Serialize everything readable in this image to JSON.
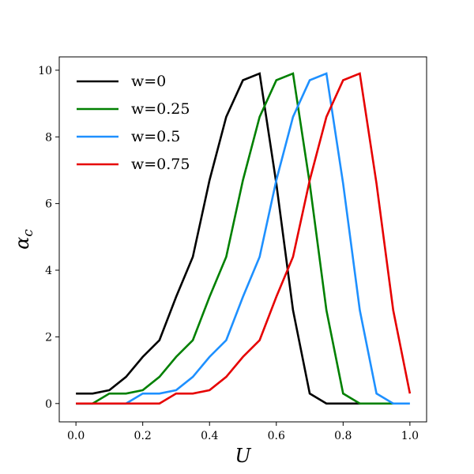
{
  "chart_data": {
    "type": "line",
    "xlabel": "U",
    "ylabel_main": "α",
    "ylabel_sub": "c",
    "xlim": [
      -0.05,
      1.05
    ],
    "ylim": [
      -0.55,
      10.4
    ],
    "xticks": [
      0.0,
      0.2,
      0.4,
      0.6,
      0.8,
      1.0
    ],
    "xtick_labels": [
      "0.0",
      "0.2",
      "0.4",
      "0.6",
      "0.8",
      "1.0"
    ],
    "yticks": [
      0,
      2,
      4,
      6,
      8,
      10
    ],
    "ytick_labels": [
      "0",
      "2",
      "4",
      "6",
      "8",
      "10"
    ],
    "grid": false,
    "legend_position": "top-left",
    "series": [
      {
        "name": "w=0",
        "color": "#000000",
        "x": [
          0.0,
          0.05,
          0.1,
          0.15,
          0.2,
          0.25,
          0.3,
          0.35,
          0.4,
          0.45,
          0.5,
          0.55,
          0.6,
          0.65,
          0.7,
          0.75,
          0.8,
          0.85
        ],
        "y": [
          0.3,
          0.3,
          0.4,
          0.8,
          1.4,
          1.9,
          3.2,
          4.4,
          6.7,
          8.6,
          9.7,
          9.9,
          6.6,
          2.8,
          0.3,
          0.0,
          0.0,
          0.0
        ]
      },
      {
        "name": "w=0.25",
        "color": "#008000",
        "x": [
          0.0,
          0.05,
          0.1,
          0.15,
          0.2,
          0.25,
          0.3,
          0.35,
          0.4,
          0.45,
          0.5,
          0.55,
          0.6,
          0.65,
          0.7,
          0.75,
          0.8,
          0.85,
          0.9,
          0.95
        ],
        "y": [
          0.0,
          0.0,
          0.3,
          0.3,
          0.4,
          0.8,
          1.4,
          1.9,
          3.2,
          4.4,
          6.7,
          8.6,
          9.7,
          9.9,
          6.6,
          2.8,
          0.3,
          0.0,
          0.0,
          0.0
        ]
      },
      {
        "name": "w=0.5",
        "color": "#1e90ff",
        "x": [
          0.0,
          0.05,
          0.1,
          0.15,
          0.2,
          0.25,
          0.3,
          0.35,
          0.4,
          0.45,
          0.5,
          0.55,
          0.6,
          0.65,
          0.7,
          0.75,
          0.8,
          0.85,
          0.9,
          0.95,
          1.0
        ],
        "y": [
          0.0,
          0.0,
          0.0,
          0.0,
          0.3,
          0.3,
          0.4,
          0.8,
          1.4,
          1.9,
          3.2,
          4.4,
          6.7,
          8.6,
          9.7,
          9.9,
          6.6,
          2.8,
          0.3,
          0.0,
          0.0
        ]
      },
      {
        "name": "w=0.75",
        "color": "#e60000",
        "x": [
          0.0,
          0.05,
          0.1,
          0.15,
          0.2,
          0.25,
          0.3,
          0.35,
          0.4,
          0.45,
          0.5,
          0.55,
          0.6,
          0.65,
          0.7,
          0.75,
          0.8,
          0.85,
          0.9,
          0.95,
          1.0
        ],
        "y": [
          0.0,
          0.0,
          0.0,
          0.0,
          0.0,
          0.0,
          0.3,
          0.3,
          0.4,
          0.8,
          1.4,
          1.9,
          3.2,
          4.4,
          6.7,
          8.6,
          9.7,
          9.9,
          6.6,
          2.8,
          0.3
        ]
      }
    ]
  }
}
